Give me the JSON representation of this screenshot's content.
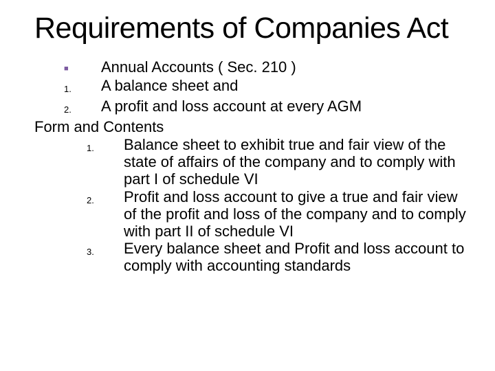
{
  "title": "Requirements of Companies Act",
  "bullet_color": "#7c5aa0",
  "items": {
    "b1": "Annual Accounts ( Sec. 210 )",
    "n1_label": "1.",
    "n1": "A balance sheet   and",
    "n2_label": "2.",
    "n2": "A profit and loss account at every AGM",
    "sub": "Form and Contents",
    "s1_label": "1.",
    "s1": "Balance sheet to exhibit true and fair view of the state of affairs of the company and to comply with part I of schedule VI",
    "s2_label": "2.",
    "s2": "Profit and loss account to give a true and fair view of the profit and loss of the company and to comply with part II of schedule VI",
    "s3_label": "3.",
    "s3": "Every balance sheet and Profit and loss account to comply with accounting standards"
  },
  "style": {
    "title_fontsize": 43,
    "body_fontsize": 22,
    "ord_marker_fontsize": 13,
    "background_color": "#ffffff",
    "text_color": "#000000"
  }
}
